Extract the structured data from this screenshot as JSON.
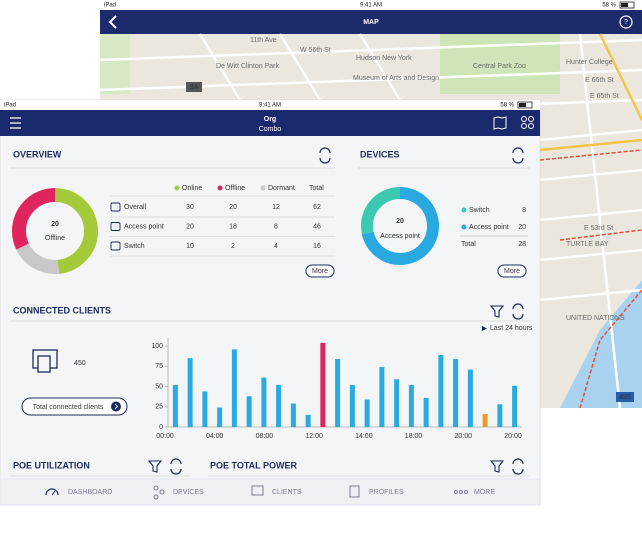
{
  "map_screen": {
    "status": {
      "device": "iPad",
      "time": "9:41 AM",
      "battery": "58 %"
    },
    "title": "MAP",
    "labels": [
      "Hudson New York",
      "Museum of Arts and Design",
      "Central Park Zoo",
      "Hunter College",
      "De Witt Clinton Park",
      "E 66th St",
      "E 65th St",
      "E 53rd St",
      "TURTLE BAY",
      "UNITED NATIONS",
      "W 56th St",
      "11th Ave",
      "9A",
      "495"
    ]
  },
  "status": {
    "device": "iPad",
    "time": "9:41 AM",
    "battery": "58 %"
  },
  "header": {
    "title": "Org",
    "subtitle": "Combo"
  },
  "overview": {
    "title": "OVERVIEW",
    "donut_value": 20,
    "donut_label": "Offline",
    "columns": [
      "Online",
      "Offline",
      "Dormant",
      "Total"
    ],
    "colors": [
      "#a6c93a",
      "#e0245e",
      "#c8c8c8"
    ],
    "rows": [
      {
        "name": "Overall",
        "values": [
          30,
          20,
          12,
          62
        ]
      },
      {
        "name": "Access point",
        "values": [
          20,
          18,
          8,
          46
        ]
      },
      {
        "name": "Switch",
        "values": [
          10,
          2,
          4,
          16
        ]
      }
    ],
    "more": "More"
  },
  "devices": {
    "title": "DEVICES",
    "donut_value": 20,
    "donut_label": "Access point",
    "rows": [
      {
        "name": "Switch",
        "value": 8,
        "color": "#3cc9b0"
      },
      {
        "name": "Access point",
        "value": 20,
        "color": "#29a9e0"
      },
      {
        "name": "Total",
        "value": 28
      }
    ],
    "more": "More"
  },
  "clients": {
    "title": "CONNECTED CLIENTS",
    "range": "Last 24 hours",
    "count": 450,
    "button": "Total connected clients",
    "chart": {
      "type": "bar",
      "xticks": [
        "00:00",
        "04:00",
        "08:00",
        "12:00",
        "14:00",
        "18:00",
        "20:00",
        "20:00"
      ],
      "values": [
        52,
        85,
        44,
        24,
        96,
        38,
        61,
        52,
        29,
        15,
        104,
        84,
        52,
        34,
        74,
        59,
        52,
        36,
        89,
        84,
        71,
        16,
        28,
        51
      ],
      "colors": [
        "#29abe2",
        "#29abe2",
        "#29abe2",
        "#29abe2",
        "#29abe2",
        "#29abe2",
        "#29abe2",
        "#29abe2",
        "#29abe2",
        "#29abe2",
        "#e0245e",
        "#29abe2",
        "#29abe2",
        "#29abe2",
        "#29abe2",
        "#29abe2",
        "#29abe2",
        "#29abe2",
        "#29abe2",
        "#29abe2",
        "#29abe2",
        "#f0962a",
        "#29abe2",
        "#29abe2"
      ],
      "ylim": [
        0,
        110
      ],
      "yticks": [
        0,
        25,
        50,
        75,
        100
      ]
    }
  },
  "poe_utilization": {
    "title": "POE UTILIZATION"
  },
  "poe_power": {
    "title": "POE TOTAL POWER"
  },
  "tabs": [
    "DASHBOARD",
    "DEVICES",
    "CLIENTS",
    "PROFILES",
    "MORE"
  ]
}
